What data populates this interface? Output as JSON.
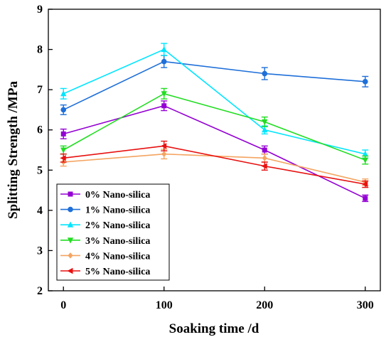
{
  "chart_data": {
    "type": "line",
    "xlabel": "Soaking time /d",
    "ylabel": "Splitting Strength /MPa",
    "x": [
      0,
      100,
      200,
      300
    ],
    "xticks": [
      "0",
      "100",
      "200",
      "300"
    ],
    "xlim": [
      -15,
      315
    ],
    "ylim": [
      2,
      9
    ],
    "yticks": [
      "2",
      "3",
      "4",
      "5",
      "6",
      "7",
      "8",
      "9"
    ],
    "grid": false,
    "legend_position": "bottom-left",
    "series": [
      {
        "name": "0% Nano-silica",
        "values": [
          5.9,
          6.6,
          5.5,
          4.3
        ],
        "errors": [
          0.12,
          0.12,
          0.1,
          0.08
        ],
        "color": "#9400d3",
        "marker": "square"
      },
      {
        "name": "1% Nano-silica",
        "values": [
          6.5,
          7.7,
          7.4,
          7.2
        ],
        "errors": [
          0.12,
          0.15,
          0.15,
          0.13
        ],
        "color": "#1e6fd9",
        "marker": "circle"
      },
      {
        "name": "2% Nano-silica",
        "values": [
          6.9,
          8.0,
          6.0,
          5.4
        ],
        "errors": [
          0.13,
          0.15,
          0.1,
          0.1
        ],
        "color": "#00e5ff",
        "marker": "triangle-up"
      },
      {
        "name": "3% Nano-silica",
        "values": [
          5.5,
          6.9,
          6.2,
          5.25
        ],
        "errors": [
          0.1,
          0.13,
          0.12,
          0.1
        ],
        "color": "#22dd22",
        "marker": "triangle-down"
      },
      {
        "name": "4% Nano-silica",
        "values": [
          5.2,
          5.4,
          5.3,
          4.7
        ],
        "errors": [
          0.1,
          0.12,
          0.1,
          0.08
        ],
        "color": "#f4a460",
        "marker": "diamond"
      },
      {
        "name": "5% Nano-silica",
        "values": [
          5.3,
          5.6,
          5.1,
          4.65
        ],
        "errors": [
          0.1,
          0.12,
          0.1,
          0.08
        ],
        "color": "#e81010",
        "marker": "triangle-left"
      }
    ]
  }
}
